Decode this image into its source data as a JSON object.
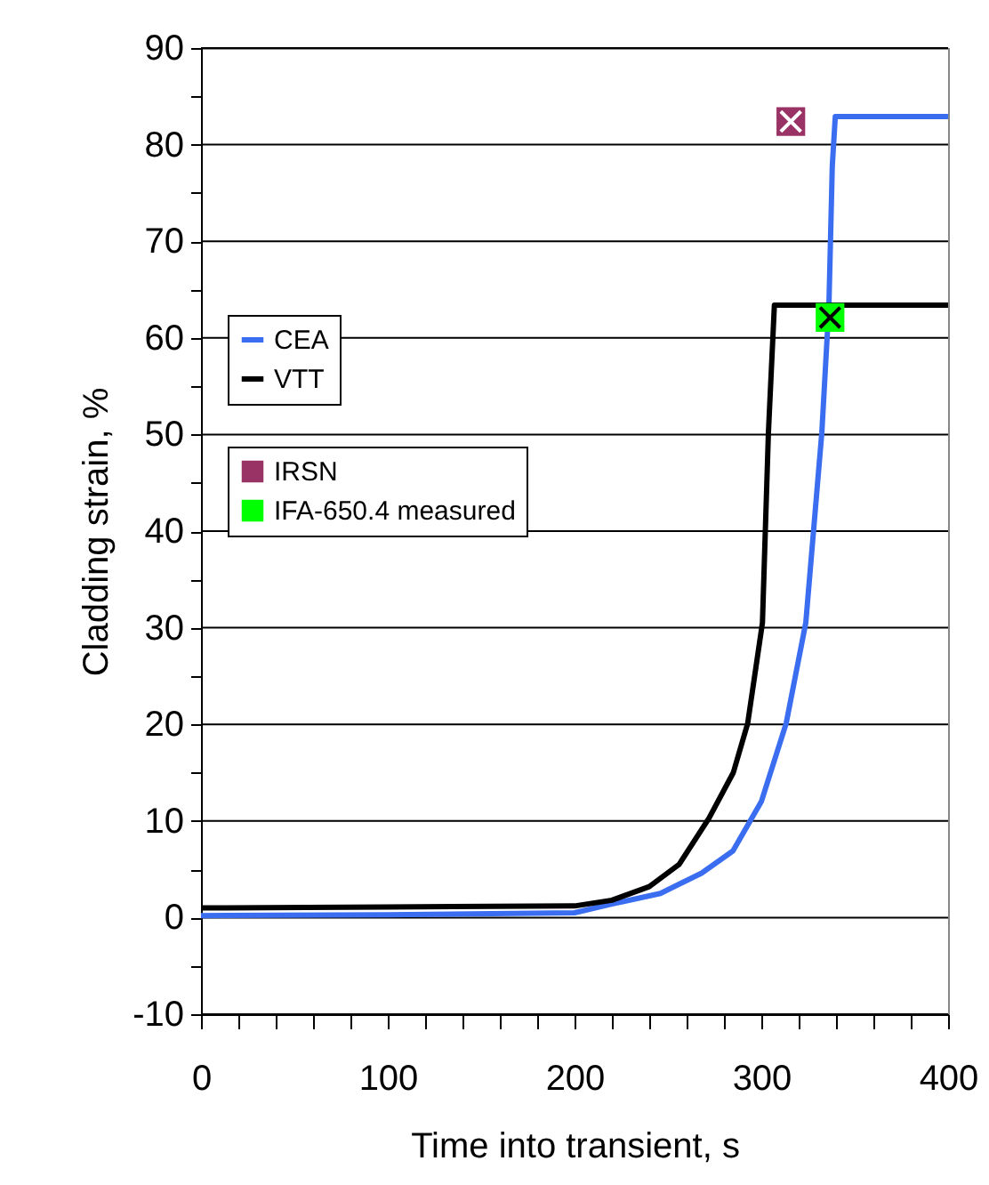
{
  "chart_data": {
    "type": "line",
    "xlabel": "Time into transient, s",
    "ylabel": "Cladding strain, %",
    "xlim": [
      0,
      400
    ],
    "ylim": [
      -10,
      90
    ],
    "xticks": [
      0,
      {
        "value": 20,
        "label": null
      },
      {
        "value": 40,
        "label": null
      },
      {
        "value": 60,
        "label": null
      },
      {
        "value": 80,
        "label": null
      },
      100,
      {
        "value": 120,
        "label": null
      },
      {
        "value": 140,
        "label": null
      },
      {
        "value": 160,
        "label": null
      },
      {
        "value": 180,
        "label": null
      },
      200,
      {
        "value": 220,
        "label": null
      },
      {
        "value": 240,
        "label": null
      },
      {
        "value": 260,
        "label": null
      },
      {
        "value": 280,
        "label": null
      },
      300,
      {
        "value": 320,
        "label": null
      },
      {
        "value": 340,
        "label": null
      },
      {
        "value": 360,
        "label": null
      },
      {
        "value": 380,
        "label": null
      },
      400
    ],
    "yticks": [
      -10,
      {
        "value": -5,
        "label": null
      },
      0,
      {
        "value": 5,
        "label": null
      },
      10,
      {
        "value": 15,
        "label": null
      },
      20,
      {
        "value": 25,
        "label": null
      },
      30,
      {
        "value": 35,
        "label": null
      },
      40,
      {
        "value": 45,
        "label": null
      },
      50,
      {
        "value": 55,
        "label": null
      },
      60,
      {
        "value": 65,
        "label": null
      },
      70,
      {
        "value": 75,
        "label": null
      },
      80,
      {
        "value": 85,
        "label": null
      },
      90
    ],
    "grid": "y",
    "legend": "left",
    "series": [
      {
        "name": "CEA",
        "color": "#3a6df0",
        "x": [
          0,
          100,
          200,
          220,
          246,
          268,
          284.8,
          300,
          313.3,
          323.8,
          332.4,
          336.2,
          338,
          339.6,
          400
        ],
        "values": [
          0.2,
          0.3,
          0.5,
          1.4,
          2.5,
          4.6,
          6.9,
          12,
          20.1,
          30.5,
          50.2,
          63.4,
          77.8,
          82.9,
          82.9
        ]
      },
      {
        "name": "VTT",
        "color": "#000000",
        "x": [
          0,
          100,
          200,
          220,
          240,
          256,
          272,
          285,
          292.7,
          300.6,
          303.8,
          307,
          400
        ],
        "values": [
          1.0,
          1.1,
          1.2,
          1.8,
          3.2,
          5.5,
          10.3,
          15,
          20.1,
          30.5,
          50.2,
          63.4,
          63.4
        ]
      },
      {
        "name": "IRSN",
        "type": "scatter",
        "marker": "square",
        "color": "#993366",
        "x": [
          315.8
        ],
        "values": [
          82.4
        ]
      },
      {
        "name": "IFA-650.4 measured",
        "type": "scatter",
        "marker": "square",
        "color": "#00ff00",
        "x": [
          336.8
        ],
        "values": [
          62.1
        ]
      }
    ]
  }
}
